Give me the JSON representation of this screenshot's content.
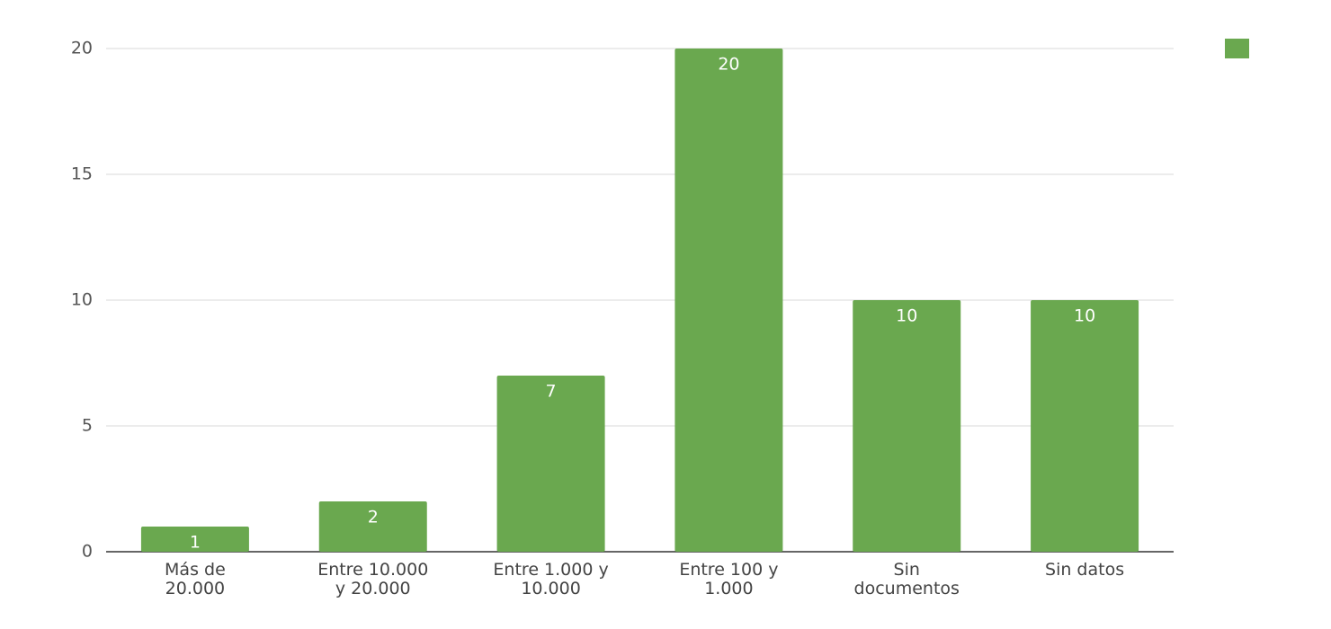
{
  "chart_data": {
    "type": "bar",
    "categories": [
      "Más de\n20.000",
      "Entre 10.000\ny 20.000",
      "Entre 1.000 y\n10.000",
      "Entre 100 y\n1.000",
      "Sin\ndocumentos",
      "Sin datos"
    ],
    "values": [
      1,
      2,
      7,
      20,
      10,
      10
    ],
    "color": "#6aa84f",
    "ylim": [
      0,
      20
    ],
    "yticks": [
      0,
      5,
      10,
      15,
      20
    ],
    "grid": true,
    "data_labels": true,
    "legend": "top-right"
  }
}
